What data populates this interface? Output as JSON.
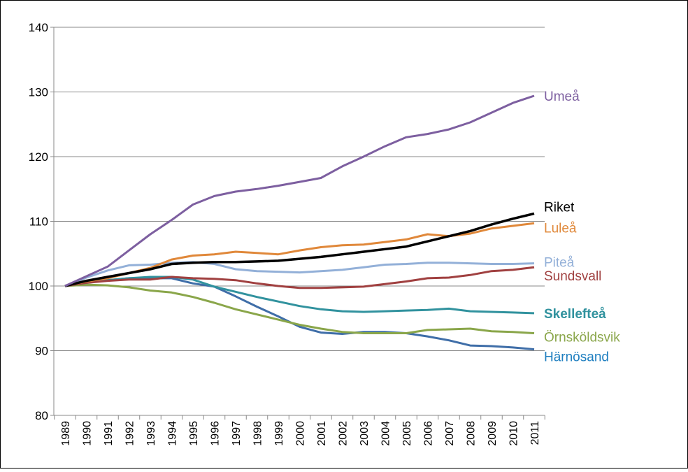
{
  "chart_data": {
    "type": "line",
    "categories": [
      "1989",
      "1990",
      "1991",
      "1992",
      "1993",
      "1994",
      "1995",
      "1996",
      "1997",
      "1998",
      "1999",
      "2000",
      "2001",
      "2002",
      "2003",
      "2004",
      "2005",
      "2006",
      "2007",
      "2008",
      "2009",
      "2010",
      "2011"
    ],
    "ylim": [
      80,
      140
    ],
    "yticks": [
      80,
      90,
      100,
      110,
      120,
      130,
      140
    ],
    "grid": true,
    "series": [
      {
        "name": "Umeå",
        "color": "#7d5fa0",
        "values": [
          100,
          101.5,
          103,
          105.5,
          108,
          110.2,
          112.6,
          113.9,
          114.6,
          115,
          115.5,
          116.1,
          116.7,
          118.5,
          120,
          121.6,
          123,
          123.5,
          124.2,
          125.3,
          126.8,
          128.3,
          129.4
        ]
      },
      {
        "name": "Riket",
        "color": "#000000",
        "values": [
          100,
          100.8,
          101.4,
          102,
          102.6,
          103.4,
          103.6,
          103.7,
          103.7,
          103.8,
          103.9,
          104.2,
          104.5,
          104.9,
          105.3,
          105.7,
          106.1,
          106.9,
          107.7,
          108.5,
          109.5,
          110.4,
          111.2
        ]
      },
      {
        "name": "Luleå",
        "color": "#e0883a",
        "values": [
          100,
          100.7,
          101.2,
          102,
          102.8,
          104.1,
          104.7,
          104.9,
          105.3,
          105.1,
          104.9,
          105.5,
          106,
          106.3,
          106.4,
          106.8,
          107.2,
          108,
          107.7,
          108.1,
          108.9,
          109.3,
          109.7
        ]
      },
      {
        "name": "Piteå",
        "color": "#93b0d8",
        "values": [
          100,
          101.3,
          102.4,
          103.2,
          103.3,
          103.6,
          103.7,
          103.4,
          102.6,
          102.3,
          102.2,
          102.1,
          102.3,
          102.5,
          102.9,
          103.3,
          103.4,
          103.6,
          103.6,
          103.5,
          103.4,
          103.4,
          103.5
        ]
      },
      {
        "name": "Sundsvall",
        "color": "#a04040",
        "values": [
          100,
          100.5,
          100.8,
          101,
          101,
          101.4,
          101.2,
          101.1,
          100.9,
          100.4,
          100,
          99.7,
          99.7,
          99.8,
          99.9,
          100.3,
          100.7,
          101.2,
          101.3,
          101.7,
          102.3,
          102.5,
          102.9
        ]
      },
      {
        "name": "Skellefteå",
        "color": "#31929e",
        "values": [
          100,
          100.5,
          100.9,
          101.2,
          101.4,
          101.4,
          101,
          99.9,
          99.1,
          98.3,
          97.6,
          96.9,
          96.4,
          96.1,
          96,
          96.1,
          96.2,
          96.3,
          96.5,
          96.1,
          96,
          95.9,
          95.8
        ]
      },
      {
        "name": "Örnsköldsvik",
        "color": "#8aa64a",
        "values": [
          100,
          100.2,
          100.1,
          99.8,
          99.3,
          99,
          98.3,
          97.4,
          96.4,
          95.6,
          94.8,
          94,
          93.4,
          92.9,
          92.7,
          92.7,
          92.7,
          93.2,
          93.3,
          93.4,
          93,
          92.9,
          92.7
        ]
      },
      {
        "name": "Härnösand",
        "color": "#3f6ea8",
        "values": [
          100,
          100.6,
          100.9,
          101.2,
          101.2,
          101.2,
          100.4,
          99.9,
          98.4,
          96.8,
          95.3,
          93.7,
          92.8,
          92.6,
          92.9,
          92.9,
          92.7,
          92.2,
          91.6,
          90.8,
          90.7,
          90.5,
          90.2
        ]
      }
    ]
  }
}
